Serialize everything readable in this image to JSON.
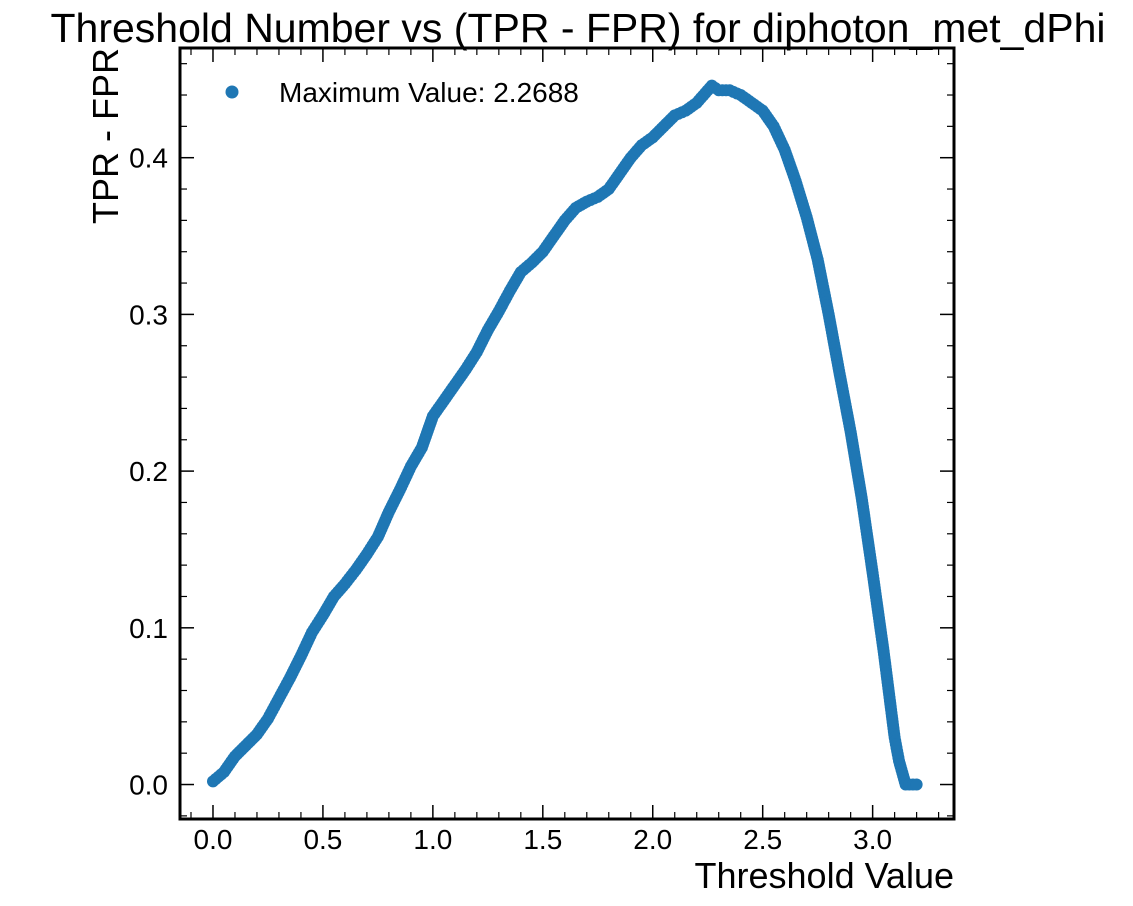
{
  "chart_data": {
    "type": "scatter",
    "title": "Threshold Number vs (TPR - FPR) for diphoton_met_dPhi",
    "xlabel": "Threshold Value",
    "ylabel": "TPR - FPR",
    "xlim": [
      -0.15,
      3.37
    ],
    "ylim": [
      -0.022,
      0.47
    ],
    "x_ticks": [
      0.0,
      0.5,
      1.0,
      1.5,
      2.0,
      2.5,
      3.0
    ],
    "x_tick_labels": [
      "0.0",
      "0.5",
      "1.0",
      "1.5",
      "2.0",
      "2.5",
      "3.0"
    ],
    "y_ticks": [
      0.0,
      0.1,
      0.2,
      0.3,
      0.4
    ],
    "y_tick_labels": [
      "0.0",
      "0.1",
      "0.2",
      "0.3",
      "0.4"
    ],
    "grid": false,
    "legend": {
      "location": "top-left",
      "entries": [
        "Maximum Value: 2.2688"
      ]
    },
    "series": [
      {
        "name": "Maximum Value: 2.2688",
        "color": "#1f77b4",
        "points": [
          [
            0.0,
            0.002
          ],
          [
            0.05,
            0.008
          ],
          [
            0.1,
            0.018
          ],
          [
            0.15,
            0.025
          ],
          [
            0.2,
            0.032
          ],
          [
            0.25,
            0.042
          ],
          [
            0.3,
            0.055
          ],
          [
            0.35,
            0.068
          ],
          [
            0.4,
            0.082
          ],
          [
            0.45,
            0.097
          ],
          [
            0.5,
            0.108
          ],
          [
            0.55,
            0.12
          ],
          [
            0.6,
            0.128
          ],
          [
            0.65,
            0.137
          ],
          [
            0.7,
            0.147
          ],
          [
            0.75,
            0.158
          ],
          [
            0.8,
            0.174
          ],
          [
            0.85,
            0.188
          ],
          [
            0.9,
            0.203
          ],
          [
            0.95,
            0.215
          ],
          [
            1.0,
            0.235
          ],
          [
            1.05,
            0.245
          ],
          [
            1.1,
            0.255
          ],
          [
            1.15,
            0.265
          ],
          [
            1.2,
            0.276
          ],
          [
            1.25,
            0.29
          ],
          [
            1.3,
            0.302
          ],
          [
            1.35,
            0.315
          ],
          [
            1.4,
            0.327
          ],
          [
            1.45,
            0.333
          ],
          [
            1.5,
            0.34
          ],
          [
            1.55,
            0.35
          ],
          [
            1.6,
            0.36
          ],
          [
            1.65,
            0.368
          ],
          [
            1.7,
            0.372
          ],
          [
            1.75,
            0.375
          ],
          [
            1.8,
            0.38
          ],
          [
            1.85,
            0.39
          ],
          [
            1.9,
            0.4
          ],
          [
            1.95,
            0.408
          ],
          [
            2.0,
            0.413
          ],
          [
            2.05,
            0.42
          ],
          [
            2.1,
            0.427
          ],
          [
            2.15,
            0.43
          ],
          [
            2.2,
            0.435
          ],
          [
            2.2688,
            0.446
          ],
          [
            2.3,
            0.443
          ],
          [
            2.35,
            0.443
          ],
          [
            2.4,
            0.44
          ],
          [
            2.45,
            0.435
          ],
          [
            2.5,
            0.43
          ],
          [
            2.55,
            0.42
          ],
          [
            2.6,
            0.405
          ],
          [
            2.65,
            0.385
          ],
          [
            2.7,
            0.362
          ],
          [
            2.75,
            0.335
          ],
          [
            2.8,
            0.3
          ],
          [
            2.85,
            0.262
          ],
          [
            2.9,
            0.225
          ],
          [
            2.95,
            0.183
          ],
          [
            3.0,
            0.135
          ],
          [
            3.05,
            0.085
          ],
          [
            3.1,
            0.03
          ],
          [
            3.12,
            0.015
          ],
          [
            3.15,
            0.0
          ],
          [
            3.2,
            0.0
          ]
        ]
      }
    ]
  }
}
